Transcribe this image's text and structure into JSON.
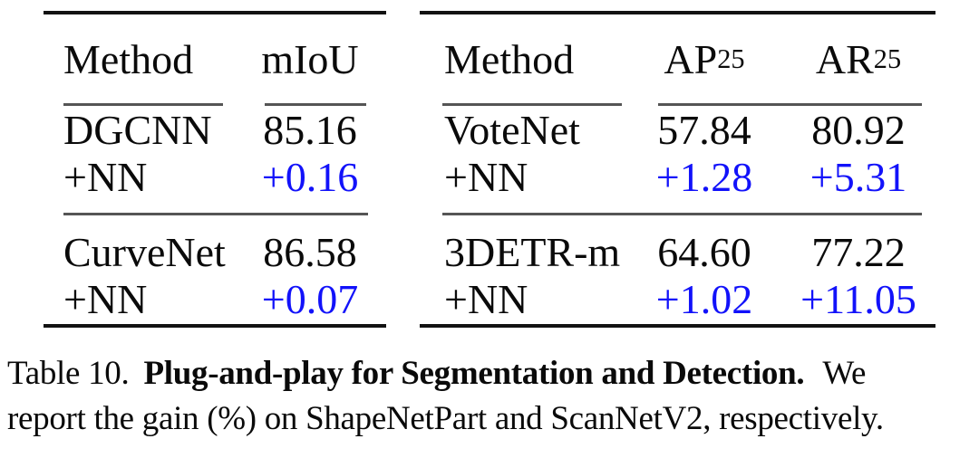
{
  "colors": {
    "gain": "#1212fa",
    "rule_dark": "#121212",
    "rule_gray": "#555555",
    "text": "#0a0a0a"
  },
  "tables": [
    {
      "name": "segmentation-results",
      "headers": [
        {
          "text": "Method",
          "sub": ""
        },
        {
          "text": "mIoU",
          "sub": ""
        }
      ],
      "rows": [
        {
          "method": "DGCNN",
          "values": [
            "85.16"
          ],
          "gain": false
        },
        {
          "method": "+NN",
          "values": [
            "+0.16"
          ],
          "gain": true
        },
        {
          "method": "CurveNet",
          "values": [
            "86.58"
          ],
          "gain": false
        },
        {
          "method": "+NN",
          "values": [
            "+0.07"
          ],
          "gain": true
        }
      ]
    },
    {
      "name": "detection-results",
      "headers": [
        {
          "text": "Method",
          "sub": ""
        },
        {
          "text": "AP",
          "sub": "25"
        },
        {
          "text": "AR",
          "sub": "25"
        }
      ],
      "rows": [
        {
          "method": "VoteNet",
          "values": [
            "57.84",
            "80.92"
          ],
          "gain": false
        },
        {
          "method": "+NN",
          "values": [
            "+1.28",
            "+5.31"
          ],
          "gain": true
        },
        {
          "method": "3DETR-m",
          "values": [
            "64.60",
            "77.22"
          ],
          "gain": false
        },
        {
          "method": "+NN",
          "values": [
            "+1.02",
            "+11.05"
          ],
          "gain": true
        }
      ]
    }
  ],
  "caption": {
    "label": "Table 10.",
    "title": "Plug-and-play for Segmentation and Detection.",
    "line1_end": "We",
    "line2": "report the gain (%) on ShapeNetPart and ScanNetV2, respectively."
  }
}
